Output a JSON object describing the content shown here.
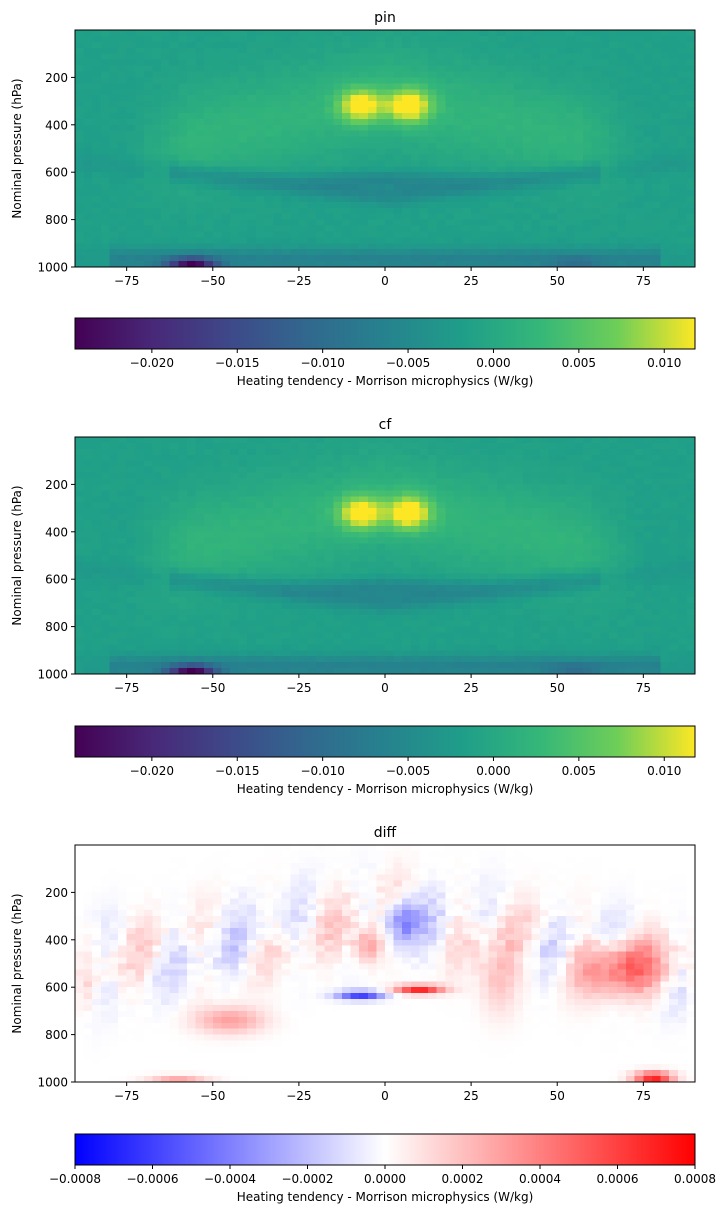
{
  "chart_data": [
    {
      "type": "heatmap",
      "title": "pin",
      "ylabel": "Nominal pressure (hPa)",
      "xlim": [
        -90,
        90
      ],
      "ylim": [
        1000,
        0
      ],
      "xticks": [
        "−75",
        "−50",
        "−25",
        "0",
        "25",
        "50",
        "75"
      ],
      "yticks": [
        "200",
        "400",
        "600",
        "800",
        "1000"
      ],
      "colormap": "viridis",
      "colorbar": {
        "label": "Heating tendency - Morrison microphysics (W/kg)",
        "range": [
          -0.0245,
          0.0118
        ],
        "ticks": [
          "−0.020",
          "−0.015",
          "−0.010",
          "−0.005",
          "0.000",
          "0.005",
          "0.010"
        ]
      },
      "features": [
        {
          "lat": -7,
          "p": 320,
          "value": 0.011
        },
        {
          "lat": 7,
          "p": 320,
          "value": 0.0115
        },
        {
          "lat": -55,
          "p": 995,
          "value": -0.024
        },
        {
          "lat": 5,
          "p": 630,
          "value": -0.006
        }
      ]
    },
    {
      "type": "heatmap",
      "title": "cf",
      "ylabel": "Nominal pressure (hPa)",
      "xlim": [
        -90,
        90
      ],
      "ylim": [
        1000,
        0
      ],
      "xticks": [
        "−75",
        "−50",
        "−25",
        "0",
        "25",
        "50",
        "75"
      ],
      "yticks": [
        "200",
        "400",
        "600",
        "800",
        "1000"
      ],
      "colormap": "viridis",
      "colorbar": {
        "label": "Heating tendency - Morrison microphysics (W/kg)",
        "range": [
          -0.0245,
          0.0118
        ],
        "ticks": [
          "−0.020",
          "−0.015",
          "−0.010",
          "−0.005",
          "0.000",
          "0.005",
          "0.010"
        ]
      },
      "features": [
        {
          "lat": -7,
          "p": 320,
          "value": 0.0105
        },
        {
          "lat": 7,
          "p": 320,
          "value": 0.0115
        },
        {
          "lat": -55,
          "p": 995,
          "value": -0.024
        },
        {
          "lat": 5,
          "p": 630,
          "value": -0.006
        }
      ]
    },
    {
      "type": "heatmap",
      "title": "diff",
      "ylabel": "Nominal pressure (hPa)",
      "xlim": [
        -90,
        90
      ],
      "ylim": [
        1000,
        0
      ],
      "xticks": [
        "−75",
        "−50",
        "−25",
        "0",
        "25",
        "50",
        "75"
      ],
      "yticks": [
        "200",
        "400",
        "600",
        "800",
        "1000"
      ],
      "colormap": "bwr",
      "colorbar": {
        "label": "Heating tendency - Morrison microphysics (W/kg)",
        "range": [
          -0.0008,
          0.0008
        ],
        "ticks": [
          "−0.0008",
          "−0.0006",
          "−0.0004",
          "−0.0002",
          "0.0000",
          "0.0002",
          "0.0004",
          "0.0006",
          "0.0008"
        ]
      },
      "features": [
        {
          "lat": 10,
          "p": 610,
          "value": 0.0007
        },
        {
          "lat": -7,
          "p": 635,
          "value": -0.0006
        },
        {
          "lat": 78,
          "p": 990,
          "value": 0.0007
        },
        {
          "lat": 5,
          "p": 340,
          "value": -0.0004
        }
      ]
    }
  ]
}
